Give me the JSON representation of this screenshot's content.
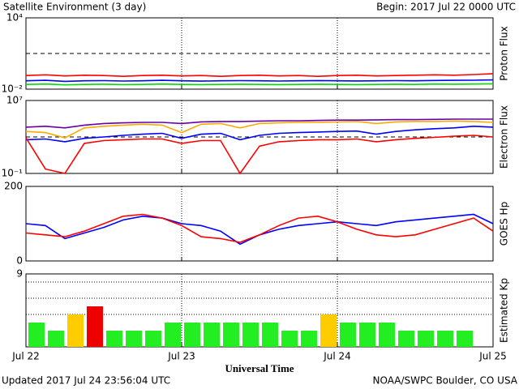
{
  "header": {
    "title": "Satellite Environment (3 day)",
    "begin": "Begin:  2017 Jul 22 0000 UTC"
  },
  "footer": {
    "updated": "Updated 2017 Jul 24 23:56:04 UTC",
    "credit": "NOAA/SWPC Boulder, CO USA"
  },
  "chart_data": [
    {
      "type": "line",
      "ylabel": "Proton Flux",
      "log": true,
      "xlim": [
        0,
        72
      ],
      "xticks": [
        {
          "value": 0,
          "label": "Jul 22"
        },
        {
          "value": 24,
          "label": "Jul 23"
        },
        {
          "value": 48,
          "label": "Jul 24"
        },
        {
          "value": 72,
          "label": "Jul 25"
        }
      ],
      "ylim": [
        0.01,
        10000
      ],
      "yticks": [
        {
          "value": 0.01,
          "label": "10⁻²"
        },
        {
          "value": 10000,
          "label": "10⁴"
        }
      ],
      "reference_lines": [
        10
      ],
      "x": [
        0,
        3,
        6,
        9,
        12,
        15,
        18,
        21,
        24,
        27,
        30,
        33,
        36,
        39,
        42,
        45,
        48,
        51,
        54,
        57,
        60,
        63,
        66,
        69,
        72
      ],
      "series": [
        {
          "color": "#ff0000",
          "values": [
            0.14,
            0.16,
            0.13,
            0.15,
            0.14,
            0.12,
            0.14,
            0.15,
            0.13,
            0.14,
            0.12,
            0.14,
            0.15,
            0.13,
            0.14,
            0.12,
            0.14,
            0.15,
            0.13,
            0.14,
            0.15,
            0.16,
            0.15,
            0.17,
            0.2
          ]
        },
        {
          "color": "#0000ff",
          "values": [
            0.05,
            0.055,
            0.045,
            0.05,
            0.052,
            0.048,
            0.05,
            0.055,
            0.05,
            0.047,
            0.05,
            0.052,
            0.05,
            0.048,
            0.05,
            0.053,
            0.05,
            0.049,
            0.05,
            0.052,
            0.05,
            0.054,
            0.055,
            0.056,
            0.06
          ]
        },
        {
          "color": "#00dd00",
          "values": [
            0.025,
            0.027,
            0.023,
            0.025,
            0.026,
            0.024,
            0.025,
            0.027,
            0.025,
            0.024,
            0.025,
            0.026,
            0.025,
            0.024,
            0.025,
            0.026,
            0.025,
            0.024,
            0.025,
            0.026,
            0.025,
            0.027,
            0.026,
            0.027,
            0.028
          ]
        }
      ]
    },
    {
      "type": "line",
      "ylabel": "Electron Flux",
      "log": true,
      "xlim": [
        0,
        72
      ],
      "xticks": [
        {
          "value": 0,
          "label": "Jul 22"
        },
        {
          "value": 24,
          "label": "Jul 23"
        },
        {
          "value": 48,
          "label": "Jul 24"
        },
        {
          "value": 72,
          "label": "Jul 25"
        }
      ],
      "ylim": [
        0.1,
        10000000
      ],
      "yticks": [
        {
          "value": 0.1,
          "label": "10⁻¹"
        },
        {
          "value": 10000000,
          "label": "10⁷"
        }
      ],
      "reference_lines": [
        1000
      ],
      "x": [
        0,
        3,
        6,
        9,
        12,
        15,
        18,
        21,
        24,
        27,
        30,
        33,
        36,
        39,
        42,
        45,
        48,
        51,
        54,
        57,
        60,
        63,
        66,
        69,
        72
      ],
      "series": [
        {
          "color": "#6600aa",
          "values": [
            12000,
            15000,
            10000,
            20000,
            30000,
            35000,
            40000,
            40000,
            30000,
            45000,
            50000,
            50000,
            55000,
            60000,
            60000,
            65000,
            70000,
            70000,
            75000,
            80000,
            80000,
            85000,
            90000,
            90000,
            90000
          ]
        },
        {
          "color": "#ffaa00",
          "values": [
            4000,
            3000,
            800,
            10000,
            15000,
            20000,
            25000,
            20000,
            3000,
            25000,
            30000,
            10000,
            30000,
            35000,
            40000,
            40000,
            45000,
            50000,
            30000,
            45000,
            50000,
            50000,
            55000,
            50000,
            40000
          ]
        },
        {
          "color": "#0000ff",
          "values": [
            500,
            600,
            300,
            700,
            1000,
            1500,
            2000,
            2500,
            700,
            2000,
            2500,
            500,
            1500,
            2500,
            3000,
            3500,
            4000,
            4500,
            2000,
            4000,
            6000,
            8000,
            10000,
            15000,
            12000
          ]
        },
        {
          "color": "#ff0000",
          "values": [
            800,
            0.3,
            0.1,
            200,
            400,
            500,
            600,
            600,
            200,
            400,
            400,
            0.1,
            100,
            300,
            400,
            500,
            500,
            600,
            300,
            500,
            700,
            900,
            1200,
            1500,
            1000
          ]
        }
      ]
    },
    {
      "type": "line",
      "ylabel": "GOES Hp",
      "log": false,
      "xlim": [
        0,
        72
      ],
      "xticks": [
        {
          "value": 0,
          "label": "Jul 22"
        },
        {
          "value": 24,
          "label": "Jul 23"
        },
        {
          "value": 48,
          "label": "Jul 24"
        },
        {
          "value": 72,
          "label": "Jul 25"
        }
      ],
      "ylim": [
        0,
        200
      ],
      "yticks": [
        0,
        200
      ],
      "x": [
        0,
        3,
        6,
        9,
        12,
        15,
        18,
        21,
        24,
        27,
        30,
        33,
        36,
        39,
        42,
        45,
        48,
        51,
        54,
        57,
        60,
        63,
        66,
        69,
        72
      ],
      "series": [
        {
          "color": "#0000ff",
          "values": [
            100,
            95,
            60,
            75,
            90,
            110,
            120,
            115,
            100,
            95,
            80,
            45,
            70,
            85,
            95,
            100,
            105,
            100,
            95,
            105,
            110,
            115,
            120,
            125,
            100
          ]
        },
        {
          "color": "#ff0000",
          "values": [
            75,
            70,
            65,
            80,
            100,
            120,
            125,
            115,
            95,
            65,
            60,
            50,
            70,
            95,
            115,
            120,
            105,
            85,
            70,
            65,
            70,
            85,
            100,
            115,
            80
          ]
        }
      ]
    },
    {
      "type": "bar",
      "ylabel": "Estimated Kp",
      "xlabel": "Universal Time",
      "log": false,
      "xlim": [
        0,
        72
      ],
      "xticks": [
        {
          "value": 0,
          "label": "Jul 22"
        },
        {
          "value": 24,
          "label": "Jul 23"
        },
        {
          "value": 48,
          "label": "Jul 24"
        },
        {
          "value": 72,
          "label": "Jul 25"
        }
      ],
      "ylim": [
        0,
        9
      ],
      "yticks": [
        9
      ],
      "reference_lines": [
        4,
        6,
        8
      ],
      "x": [
        0,
        3,
        6,
        9,
        12,
        15,
        18,
        21,
        24,
        27,
        30,
        33,
        36,
        39,
        42,
        45,
        48,
        51,
        54,
        57,
        60,
        63,
        66
      ],
      "values": [
        3,
        2,
        4,
        5,
        2,
        2,
        2,
        3,
        3,
        3,
        3,
        3,
        3,
        2,
        2,
        4,
        3,
        3,
        3,
        2,
        2,
        2,
        2
      ],
      "colors": [
        "#22ee22",
        "#22ee22",
        "#ffcc00",
        "#ee0000",
        "#22ee22",
        "#22ee22",
        "#22ee22",
        "#22ee22",
        "#22ee22",
        "#22ee22",
        "#22ee22",
        "#22ee22",
        "#22ee22",
        "#22ee22",
        "#22ee22",
        "#ffcc00",
        "#22ee22",
        "#22ee22",
        "#22ee22",
        "#22ee22",
        "#22ee22",
        "#22ee22",
        "#22ee22"
      ]
    }
  ]
}
